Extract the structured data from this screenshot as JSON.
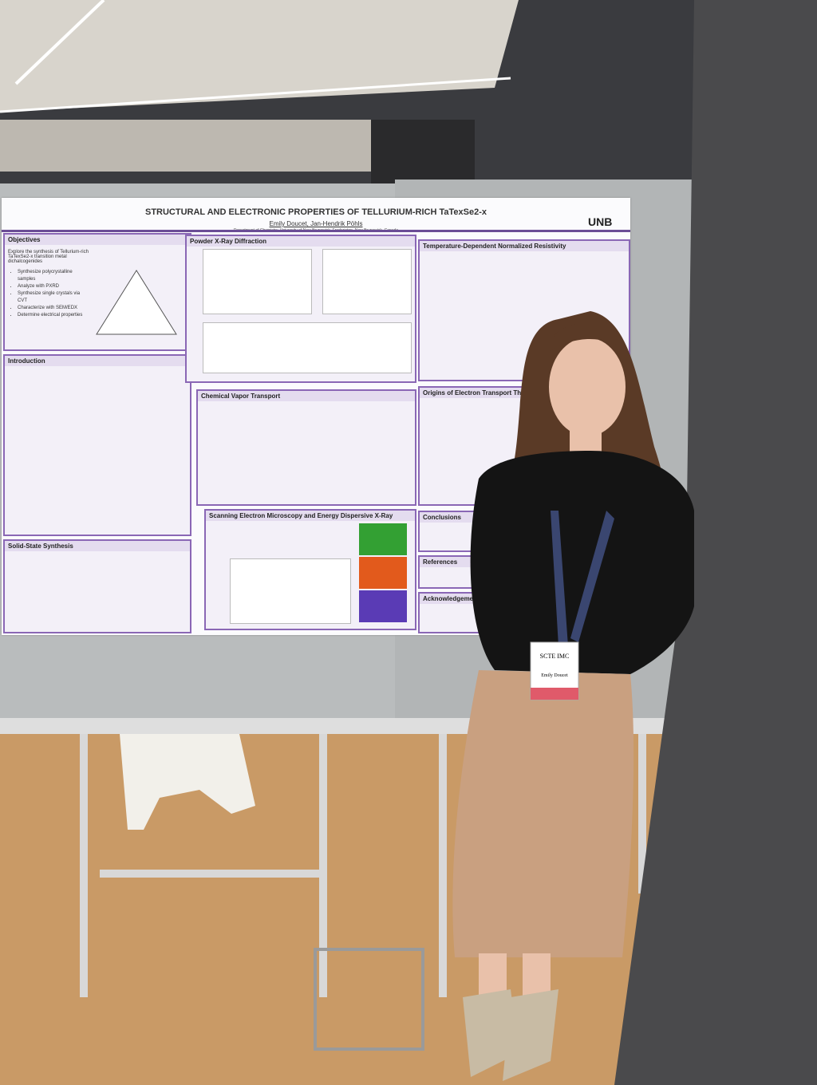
{
  "poster": {
    "title": "STRUCTURAL AND ELECTRONIC PROPERTIES OF TELLURIUM-RICH TaTexSe2-x",
    "authors": "Emily Doucet, Jan-Hendrik Pöhls",
    "affiliation": "Department of Chemistry, University of New Brunswick, Fredericton, New Brunswick, Canada",
    "logo": "UNB",
    "sections": {
      "objectives": {
        "heading": "Objectives",
        "items": [
          "Explore the synthesis of Tellurium-rich TaTexSe2-x transition metal dichalcogenides",
          "Synthesize polycrystalline samples",
          "Analyze with PXRD",
          "Synthesize single crystals via CVT",
          "Characterize with SEM/EDX",
          "Determine electrical properties"
        ]
      },
      "introduction": {
        "heading": "Introduction"
      },
      "solid_state": {
        "heading": "Solid-State Synthesis"
      },
      "pxrd": {
        "heading": "Powder X-Ray Diffraction"
      },
      "cvt": {
        "heading": "Chemical Vapor Transport"
      },
      "sem": {
        "heading": "Scanning Electron Microscopy and Energy Dispersive X-Ray"
      },
      "resistivity": {
        "heading": "Temperature-Dependent Normalized Resistivity"
      },
      "magneto": {
        "heading": "Origins of Electron Transport Through Magnet"
      },
      "conclusions": {
        "heading": "Conclusions"
      },
      "references": {
        "heading": "References"
      },
      "acknowledgements": {
        "heading": "Acknowledgements"
      }
    }
  },
  "badge": {
    "event": "SCTE IMC",
    "name": "Emily Doucet"
  }
}
